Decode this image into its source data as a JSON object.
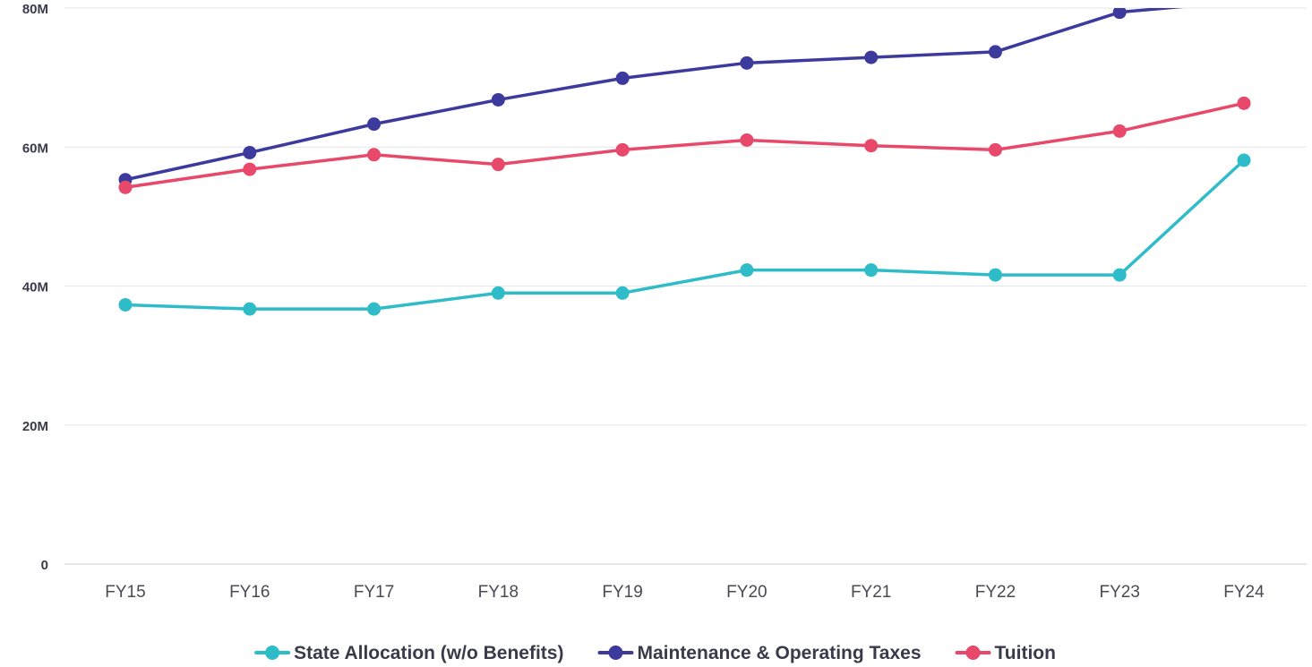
{
  "chart_data": {
    "type": "line",
    "title": "",
    "xlabel": "",
    "ylabel": "",
    "categories": [
      "FY15",
      "FY16",
      "FY17",
      "FY18",
      "FY19",
      "FY20",
      "FY21",
      "FY22",
      "FY23",
      "FY24"
    ],
    "ylim": [
      0,
      80000000
    ],
    "y_ticks": [
      0,
      20000000,
      40000000,
      60000000,
      80000000
    ],
    "y_tick_labels": [
      "0",
      "20M",
      "40M",
      "60M",
      "80M"
    ],
    "grid": true,
    "legend_position": "bottom",
    "series": [
      {
        "name": "State Allocation (w/o Benefits)",
        "color": "#2fbcc9",
        "values": [
          37300000,
          36700000,
          36700000,
          39000000,
          39000000,
          42300000,
          42300000,
          41600000,
          41600000,
          58100000
        ]
      },
      {
        "name": "Maintenance & Operating Taxes",
        "color": "#3d3a9e",
        "values": [
          55300000,
          59200000,
          63300000,
          66800000,
          69900000,
          72100000,
          72900000,
          73700000,
          79400000,
          81000000
        ]
      },
      {
        "name": "Tuition",
        "color": "#e8496a",
        "values": [
          54200000,
          56800000,
          58900000,
          57500000,
          59600000,
          61000000,
          60200000,
          59600000,
          62300000,
          66300000
        ]
      }
    ],
    "clip_top_value": 80000000
  }
}
